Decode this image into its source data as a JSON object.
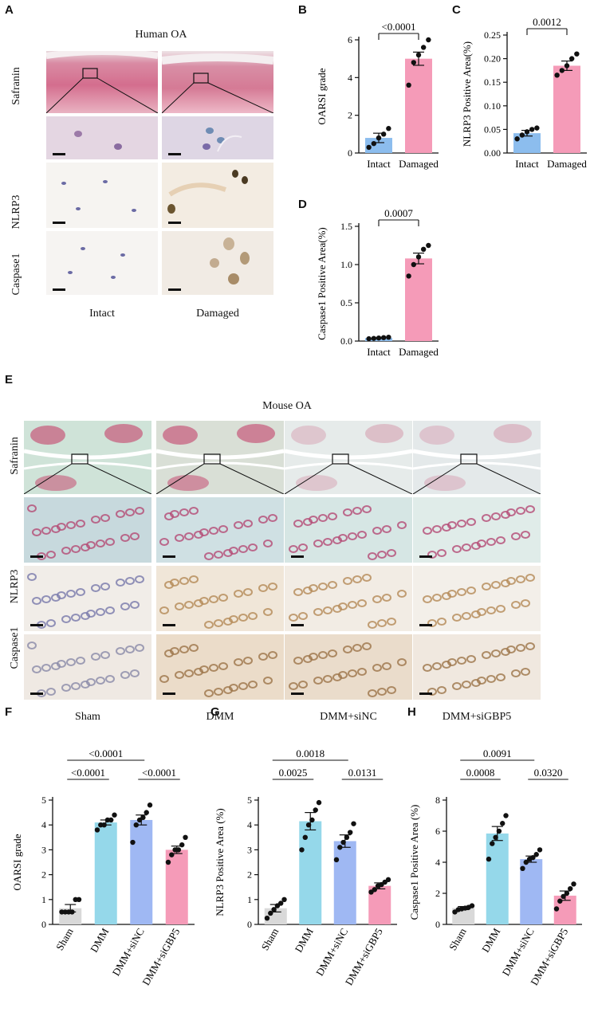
{
  "panel_letters": {
    "A": "A",
    "B": "B",
    "C": "C",
    "D": "D",
    "E": "E",
    "F": "F",
    "G": "G",
    "H": "H"
  },
  "panelA": {
    "title": "Human OA",
    "row_labels": [
      "Safranin",
      "NLRP3",
      "Caspase1"
    ],
    "col_labels": [
      "Intact",
      "Damaged"
    ]
  },
  "panelE": {
    "title": "Mouse OA",
    "row_labels": [
      "Safranin",
      "NLRP3",
      "Caspase1"
    ],
    "col_labels": [
      "Sham",
      "DMM",
      "DMM+siNC",
      "DMM+siGBP5"
    ]
  },
  "colors": {
    "blue": "#8cbdee",
    "pink": "#f59bb8",
    "gray": "#d9d9d9",
    "cyan": "#95d8ea",
    "periwinkle": "#9fb8f3"
  },
  "chart_data": [
    {
      "id": "B",
      "type": "bar",
      "ylabel": "OARSI grade",
      "ylim": [
        0,
        6
      ],
      "yticks": [
        0,
        2,
        4,
        6
      ],
      "categories": [
        "Intact",
        "Damaged"
      ],
      "values": [
        0.8,
        5.0
      ],
      "errors": [
        0.25,
        0.35
      ],
      "points": [
        [
          0.3,
          0.5,
          0.8,
          1.0,
          1.3
        ],
        [
          3.6,
          4.8,
          5.2,
          5.6,
          6.0
        ]
      ],
      "colors": [
        "#8cbdee",
        "#f59bb8"
      ],
      "comparisons": [
        {
          "a": 0,
          "b": 1,
          "label": "<0.0001",
          "level": 0
        }
      ]
    },
    {
      "id": "C",
      "type": "bar",
      "ylabel": "NLRP3 Positive Area(%)",
      "ylim": [
        0,
        0.25
      ],
      "yticks": [
        0.0,
        0.05,
        0.1,
        0.15,
        0.2,
        0.25
      ],
      "ytick_labels": [
        "0.00",
        "0.05",
        "0.10",
        "0.15",
        "0.20",
        "0.25"
      ],
      "categories": [
        "Intact",
        "Damaged"
      ],
      "values": [
        0.042,
        0.185
      ],
      "errors": [
        0.006,
        0.01
      ],
      "points": [
        [
          0.03,
          0.038,
          0.045,
          0.05,
          0.053
        ],
        [
          0.165,
          0.175,
          0.185,
          0.2,
          0.21
        ]
      ],
      "colors": [
        "#8cbdee",
        "#f59bb8"
      ],
      "comparisons": [
        {
          "a": 0,
          "b": 1,
          "label": "0.0012",
          "level": 0
        }
      ]
    },
    {
      "id": "D",
      "type": "bar",
      "ylabel": "Caspase1 Positive Area(%)",
      "ylim": [
        0,
        1.5
      ],
      "yticks": [
        0.0,
        0.5,
        1.0,
        1.5
      ],
      "ytick_labels": [
        "0.0",
        "0.5",
        "1.0",
        "1.5"
      ],
      "categories": [
        "Intact",
        "Damaged"
      ],
      "values": [
        0.04,
        1.08
      ],
      "errors": [
        0.005,
        0.07
      ],
      "points": [
        [
          0.03,
          0.035,
          0.04,
          0.045,
          0.05
        ],
        [
          0.85,
          1.0,
          1.1,
          1.2,
          1.25
        ]
      ],
      "colors": [
        "#8cbdee",
        "#f59bb8"
      ],
      "comparisons": [
        {
          "a": 0,
          "b": 1,
          "label": "0.0007",
          "level": 0
        }
      ]
    },
    {
      "id": "F",
      "type": "bar",
      "ylabel": "OARSI grade",
      "ylim": [
        0,
        5
      ],
      "yticks": [
        0,
        1,
        2,
        3,
        4,
        5
      ],
      "categories": [
        "Sham",
        "DMM",
        "DMM+siNC",
        "DMM+siGBP5"
      ],
      "values": [
        0.65,
        4.1,
        4.2,
        3.0
      ],
      "errors": [
        0.15,
        0.1,
        0.2,
        0.15
      ],
      "points": [
        [
          0.5,
          0.5,
          0.5,
          0.5,
          1.0,
          1.0
        ],
        [
          3.8,
          4.0,
          4.0,
          4.2,
          4.2,
          4.4
        ],
        [
          3.3,
          4.0,
          4.2,
          4.3,
          4.5,
          4.8
        ],
        [
          2.5,
          2.8,
          3.0,
          3.0,
          3.2,
          3.5
        ]
      ],
      "colors": [
        "#d9d9d9",
        "#95d8ea",
        "#9fb8f3",
        "#f59bb8"
      ],
      "comparisons": [
        {
          "a": 0,
          "b": 1,
          "label": "<0.0001",
          "level": 0
        },
        {
          "a": 2,
          "b": 3,
          "label": "<0.0001",
          "level": 0
        },
        {
          "a": 0,
          "b": 2,
          "label": "<0.0001",
          "level": 1
        }
      ]
    },
    {
      "id": "G",
      "type": "bar",
      "ylabel": "NLRP3 Positive Area (%)",
      "ylim": [
        0,
        5
      ],
      "yticks": [
        0,
        1,
        2,
        3,
        4,
        5
      ],
      "categories": [
        "Sham",
        "DMM",
        "DMM+siNC",
        "DMM+siGBP5"
      ],
      "values": [
        0.65,
        4.15,
        3.35,
        1.55
      ],
      "errors": [
        0.15,
        0.35,
        0.25,
        0.12
      ],
      "points": [
        [
          0.25,
          0.45,
          0.6,
          0.75,
          0.85,
          1.0
        ],
        [
          3.0,
          3.5,
          4.0,
          4.2,
          4.6,
          4.9
        ],
        [
          2.6,
          3.1,
          3.3,
          3.5,
          3.7,
          4.05
        ],
        [
          1.3,
          1.4,
          1.55,
          1.6,
          1.7,
          1.8
        ]
      ],
      "colors": [
        "#d9d9d9",
        "#95d8ea",
        "#9fb8f3",
        "#f59bb8"
      ],
      "comparisons": [
        {
          "a": 0,
          "b": 1,
          "label": "0.0025",
          "level": 0
        },
        {
          "a": 2,
          "b": 3,
          "label": "0.0131",
          "level": 0
        },
        {
          "a": 0,
          "b": 2,
          "label": "0.0018",
          "level": 1
        }
      ]
    },
    {
      "id": "H",
      "type": "bar",
      "ylabel": "Caspase1 Positive Area (%)",
      "ylim": [
        0,
        8
      ],
      "yticks": [
        0,
        2,
        4,
        6,
        8
      ],
      "categories": [
        "Sham",
        "DMM",
        "DMM+siNC",
        "DMM+siGBP5"
      ],
      "values": [
        1.05,
        5.85,
        4.2,
        1.85
      ],
      "errors": [
        0.1,
        0.45,
        0.2,
        0.3
      ],
      "points": [
        [
          0.8,
          0.95,
          1.0,
          1.05,
          1.1,
          1.2
        ],
        [
          4.2,
          5.2,
          5.6,
          6.0,
          6.5,
          7.0
        ],
        [
          3.6,
          4.0,
          4.2,
          4.3,
          4.5,
          4.8
        ],
        [
          1.0,
          1.5,
          1.8,
          2.0,
          2.3,
          2.6
        ]
      ],
      "colors": [
        "#d9d9d9",
        "#95d8ea",
        "#9fb8f3",
        "#f59bb8"
      ],
      "comparisons": [
        {
          "a": 0,
          "b": 1,
          "label": "0.0008",
          "level": 0
        },
        {
          "a": 2,
          "b": 3,
          "label": "0.0320",
          "level": 0
        },
        {
          "a": 0,
          "b": 2,
          "label": "0.0091",
          "level": 1
        }
      ]
    }
  ]
}
